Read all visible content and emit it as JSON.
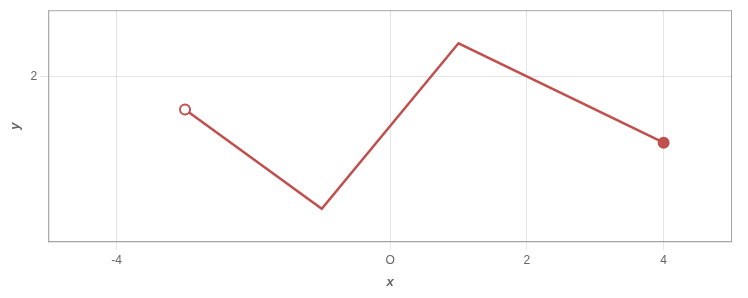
{
  "chart_data": {
    "type": "line",
    "x": [
      -3,
      -1,
      1,
      4
    ],
    "values": [
      1,
      -2,
      3,
      0
    ],
    "color": "#c0504d",
    "xlabel": "x",
    "ylabel": "y",
    "xlim": [
      -5,
      5
    ],
    "ylim": [
      -3,
      4
    ],
    "xticks": [
      -4,
      {
        "value": 0,
        "label": "O"
      },
      2,
      4
    ],
    "yticks": [
      2
    ],
    "grid": true
  }
}
